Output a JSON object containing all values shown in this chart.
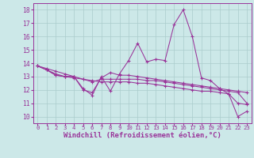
{
  "background_color": "#cce8e8",
  "grid_color": "#aacccc",
  "line_color": "#993399",
  "marker": "+",
  "xlabel": "Windchill (Refroidissement éolien,°C)",
  "xlabel_fontsize": 6.5,
  "xtick_fontsize": 5.2,
  "ytick_fontsize": 5.8,
  "ylim": [
    9.5,
    18.5
  ],
  "xlim": [
    -0.5,
    23.5
  ],
  "yticks": [
    10,
    11,
    12,
    13,
    14,
    15,
    16,
    17,
    18
  ],
  "xticks": [
    0,
    1,
    2,
    3,
    4,
    5,
    6,
    7,
    8,
    9,
    10,
    11,
    12,
    13,
    14,
    15,
    16,
    17,
    18,
    19,
    20,
    21,
    22,
    23
  ],
  "series": [
    [
      13.8,
      13.5,
      13.1,
      13.0,
      13.0,
      12.1,
      11.6,
      13.0,
      11.9,
      13.2,
      14.2,
      15.5,
      14.1,
      14.3,
      14.2,
      16.9,
      18.0,
      16.0,
      12.9,
      12.7,
      12.1,
      11.7,
      10.0,
      10.4
    ],
    [
      13.8,
      13.5,
      13.1,
      13.0,
      13.0,
      12.0,
      11.8,
      12.9,
      13.3,
      13.1,
      13.1,
      13.0,
      12.9,
      12.8,
      12.7,
      12.6,
      12.5,
      12.4,
      12.3,
      12.2,
      12.1,
      12.0,
      11.9,
      11.8
    ],
    [
      13.8,
      13.6,
      13.4,
      13.2,
      13.0,
      12.8,
      12.6,
      12.8,
      12.8,
      12.8,
      12.8,
      12.8,
      12.7,
      12.7,
      12.6,
      12.5,
      12.4,
      12.3,
      12.2,
      12.1,
      12.0,
      11.9,
      11.8,
      11.0
    ],
    [
      13.8,
      13.5,
      13.2,
      13.0,
      12.9,
      12.8,
      12.7,
      12.6,
      12.6,
      12.6,
      12.6,
      12.5,
      12.5,
      12.4,
      12.3,
      12.2,
      12.1,
      12.0,
      11.9,
      11.9,
      11.8,
      11.7,
      11.0,
      10.9
    ]
  ]
}
